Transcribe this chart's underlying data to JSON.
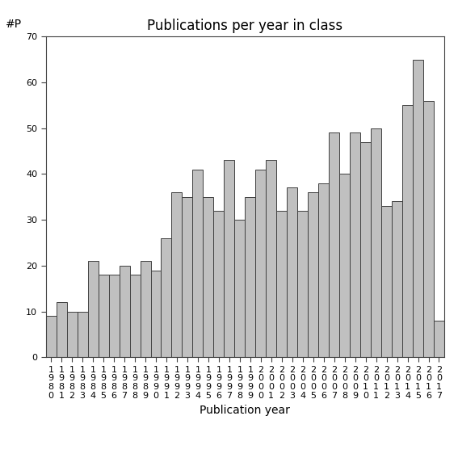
{
  "years": [
    1980,
    1981,
    1982,
    1983,
    1984,
    1985,
    1986,
    1987,
    1988,
    1989,
    1990,
    1991,
    1992,
    1993,
    1994,
    1995,
    1996,
    1997,
    1998,
    1999,
    2000,
    2001,
    2002,
    2003,
    2004,
    2005,
    2006,
    2007,
    2008,
    2009,
    2010,
    2011,
    2012,
    2013,
    2014,
    2015,
    2016,
    2017
  ],
  "values": [
    9,
    12,
    10,
    10,
    21,
    18,
    18,
    20,
    18,
    21,
    19,
    26,
    36,
    35,
    41,
    35,
    32,
    43,
    30,
    35,
    41,
    43,
    32,
    37,
    32,
    36,
    38,
    49,
    40,
    49,
    47,
    50,
    33,
    34,
    55,
    65,
    56,
    8
  ],
  "bar_color": "#c0c0c0",
  "bar_edgecolor": "#404040",
  "title": "Publications per year in class",
  "xlabel": "Publication year",
  "ylabel": "#P",
  "ylim": [
    0,
    70
  ],
  "yticks": [
    0,
    10,
    20,
    30,
    40,
    50,
    60,
    70
  ],
  "title_fontsize": 12,
  "label_fontsize": 10,
  "tick_fontsize": 8,
  "bg_color": "#ffffff"
}
